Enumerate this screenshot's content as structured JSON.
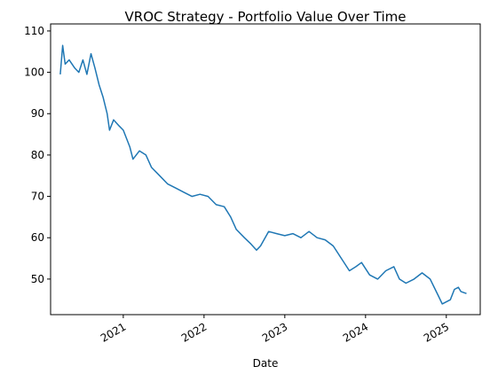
{
  "chart_data": {
    "type": "line",
    "title": "VROC Strategy - Portfolio Value Over Time",
    "x_label": "Date",
    "x": [
      2020.22,
      2020.25,
      2020.28,
      2020.33,
      2020.4,
      2020.45,
      2020.5,
      2020.55,
      2020.6,
      2020.65,
      2020.7,
      2020.75,
      2020.8,
      2020.83,
      2020.88,
      2020.95,
      2021.0,
      2021.08,
      2021.12,
      2021.2,
      2021.28,
      2021.35,
      2021.45,
      2021.55,
      2021.65,
      2021.75,
      2021.85,
      2021.95,
      2022.05,
      2022.15,
      2022.25,
      2022.33,
      2022.4,
      2022.5,
      2022.58,
      2022.65,
      2022.7,
      2022.8,
      2022.9,
      2023.0,
      2023.1,
      2023.2,
      2023.3,
      2023.4,
      2023.5,
      2023.6,
      2023.7,
      2023.8,
      2023.88,
      2023.95,
      2024.05,
      2024.15,
      2024.25,
      2024.35,
      2024.42,
      2024.5,
      2024.6,
      2024.7,
      2024.8,
      2024.9,
      2024.95,
      2025.05,
      2025.1,
      2025.15,
      2025.18,
      2025.25
    ],
    "series": [
      {
        "name": "Portfolio Value",
        "color": "#1f77b4",
        "values": [
          99.5,
          106.5,
          102,
          103,
          101,
          100,
          103,
          99.5,
          104.5,
          101,
          97,
          94,
          90,
          86,
          88.5,
          87,
          86,
          82,
          79,
          81,
          80,
          77,
          75,
          73,
          72,
          71,
          70,
          70.5,
          70,
          68,
          67.5,
          65,
          62,
          60,
          58.5,
          57,
          58,
          61.5,
          61,
          60.5,
          61,
          60,
          61.5,
          60,
          59.5,
          58,
          55,
          52,
          53,
          54,
          51,
          50,
          52,
          53,
          50,
          49,
          50,
          51.5,
          50,
          46,
          44,
          45,
          47.5,
          48,
          47,
          46.5
        ]
      }
    ],
    "xlim": [
      2020.1,
      2025.42
    ],
    "xticks": [
      2021,
      2022,
      2023,
      2024,
      2025
    ],
    "ylim": [
      41.4,
      111.7
    ],
    "yticks": [
      50,
      60,
      70,
      80,
      90,
      100,
      110
    ]
  }
}
